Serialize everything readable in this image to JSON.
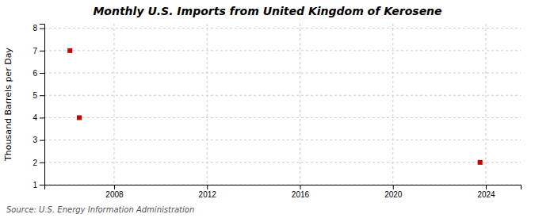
{
  "chart_data": {
    "type": "scatter",
    "title": "Monthly U.S. Imports from United Kingdom of Kerosene",
    "ylabel": "Thousand Barrels per Day",
    "source": "Source: U.S. Energy Information Administration",
    "x": [
      2006.1,
      2006.5,
      2023.75
    ],
    "values": [
      7.0,
      4.0,
      2.0
    ],
    "color": "#cc0000",
    "marker": "square",
    "xlim": [
      2005.0,
      2025.5
    ],
    "ylim": [
      1,
      8.2
    ],
    "xticks": [
      2008,
      2012,
      2016,
      2020,
      2024
    ],
    "yticks": [
      1,
      2,
      3,
      4,
      5,
      6,
      7,
      8
    ],
    "grid": true
  }
}
